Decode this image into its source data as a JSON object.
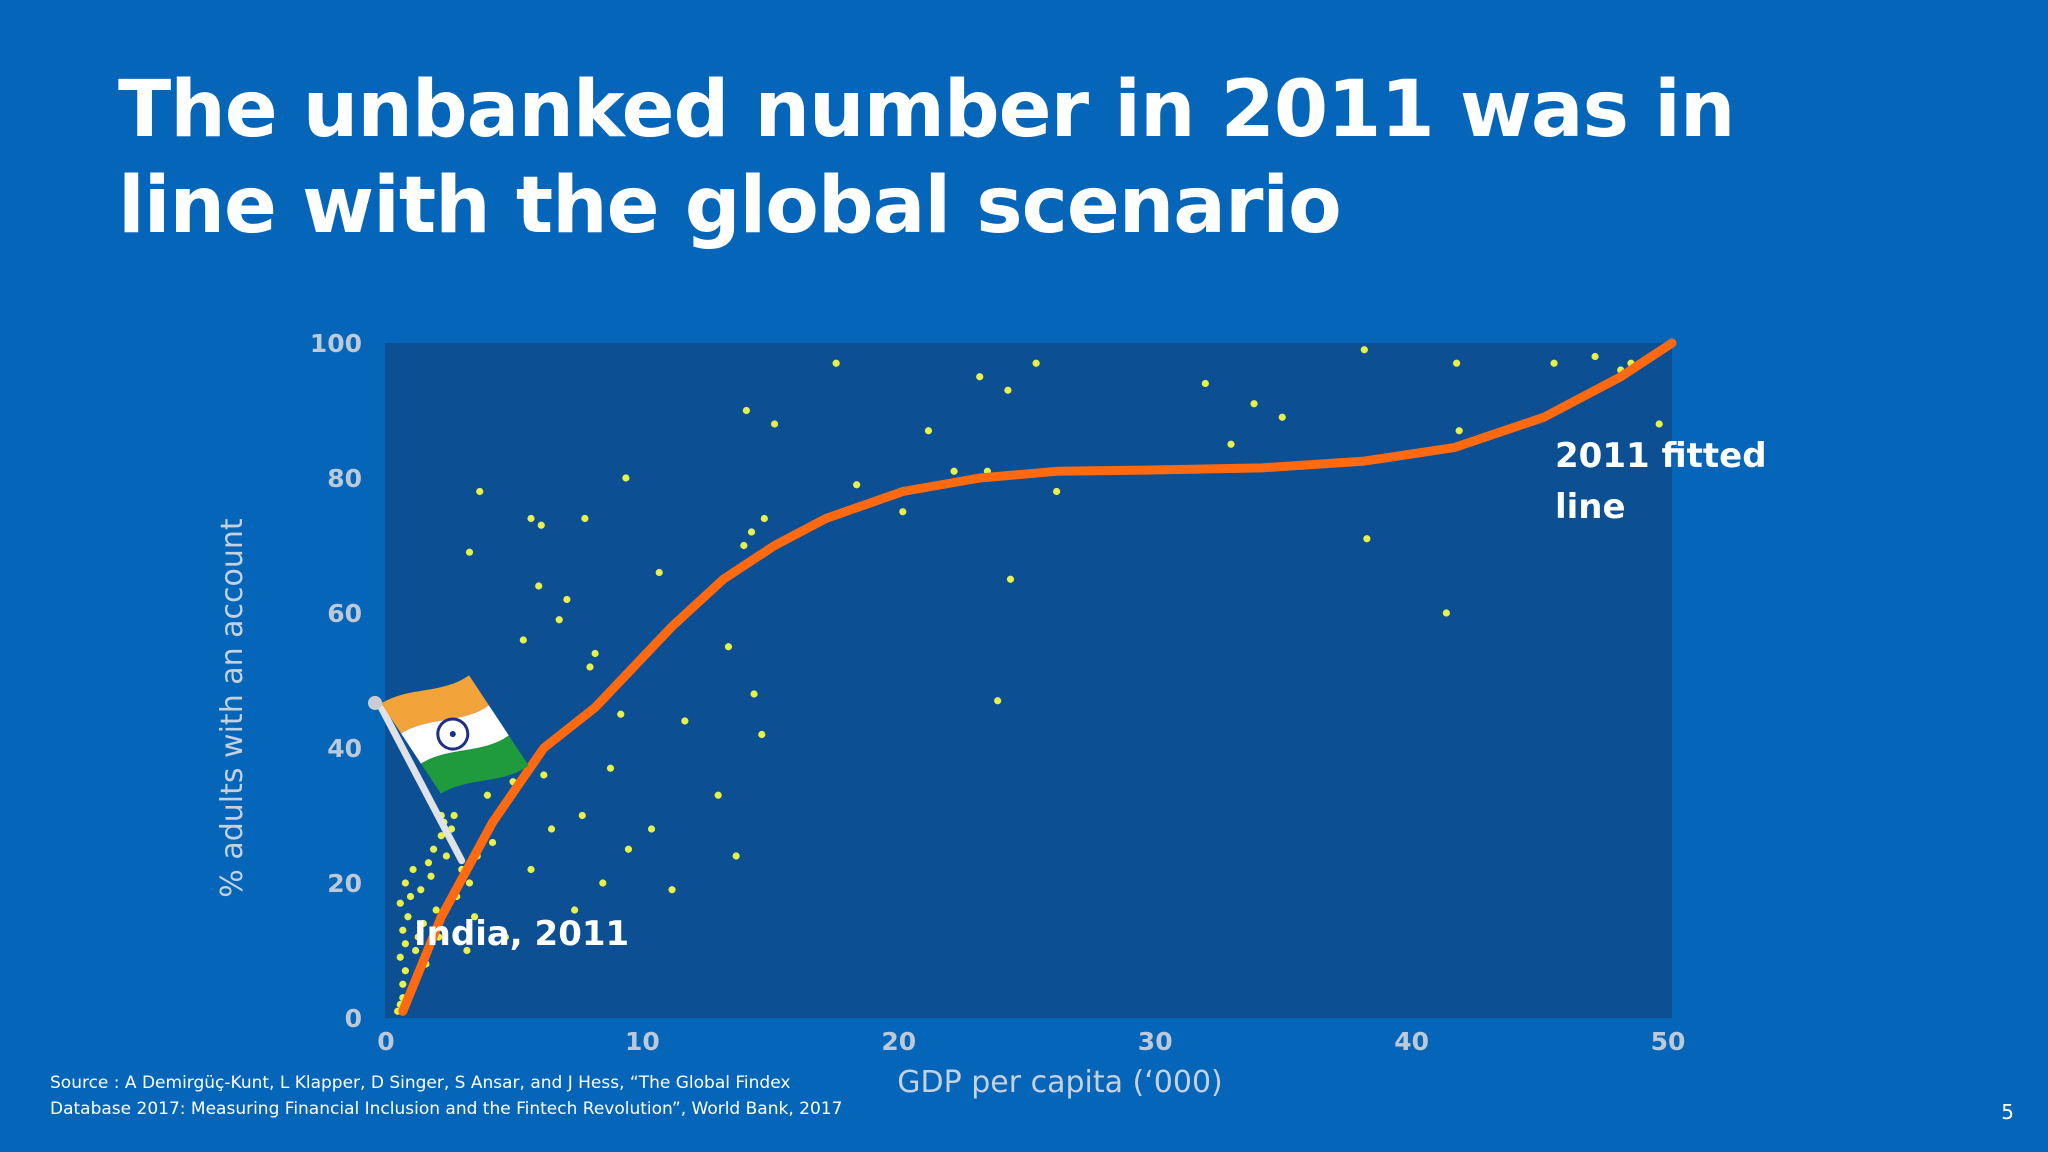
{
  "slide": {
    "title": "The unbanked number in 2011 was in line with the global scenario",
    "source": "Source : A Demirgüç-Kunt, L Klapper, D Singer, S Ansar, and J Hess, “The Global Findex Database 2017: Measuring Financial Inclusion and the Fintech Revolution”, World Bank, 2017",
    "page_number": "5"
  },
  "colors": {
    "background": "#0565b8",
    "plot_background": "#0d4f93",
    "points": "#e8f04a",
    "fitted_line": "#ff6a10"
  },
  "chart_data": {
    "type": "scatter",
    "xlabel": "GDP per capita (‘000)",
    "ylabel": "% adults with an account",
    "xlim": [
      0,
      50
    ],
    "ylim": [
      0,
      100
    ],
    "x_ticks": [
      "0",
      "10",
      "20",
      "30",
      "40",
      "50"
    ],
    "y_ticks": [
      "0",
      "20",
      "40",
      "60",
      "80",
      "100"
    ],
    "grid": false,
    "points": [
      [
        0.3,
        1
      ],
      [
        0.4,
        2
      ],
      [
        0.5,
        3
      ],
      [
        0.5,
        5
      ],
      [
        0.6,
        7
      ],
      [
        0.4,
        9
      ],
      [
        0.6,
        11
      ],
      [
        0.5,
        13
      ],
      [
        0.7,
        15
      ],
      [
        0.4,
        17
      ],
      [
        0.8,
        18
      ],
      [
        0.6,
        20
      ],
      [
        0.9,
        22
      ],
      [
        1.0,
        10
      ],
      [
        1.1,
        12
      ],
      [
        1.3,
        14
      ],
      [
        1.4,
        8
      ],
      [
        1.2,
        19
      ],
      [
        1.5,
        23
      ],
      [
        1.6,
        21
      ],
      [
        1.7,
        25
      ],
      [
        1.8,
        16
      ],
      [
        1.9,
        12
      ],
      [
        2.0,
        27
      ],
      [
        2.1,
        29
      ],
      [
        2.2,
        24
      ],
      [
        2.4,
        28
      ],
      [
        2.5,
        30
      ],
      [
        2.6,
        18
      ],
      [
        2.8,
        22
      ],
      [
        3.0,
        10
      ],
      [
        3.1,
        20
      ],
      [
        3.3,
        15
      ],
      [
        3.4,
        24
      ],
      [
        3.6,
        44
      ],
      [
        3.8,
        33
      ],
      [
        4.0,
        26
      ],
      [
        4.2,
        30
      ],
      [
        4.5,
        12
      ],
      [
        4.8,
        35
      ],
      [
        5.0,
        38
      ],
      [
        5.2,
        56
      ],
      [
        5.5,
        22
      ],
      [
        5.8,
        64
      ],
      [
        6.0,
        36
      ],
      [
        6.3,
        28
      ],
      [
        6.6,
        59
      ],
      [
        6.9,
        62
      ],
      [
        7.2,
        16
      ],
      [
        7.5,
        30
      ],
      [
        7.8,
        52
      ],
      [
        8.0,
        54
      ],
      [
        8.3,
        20
      ],
      [
        8.6,
        37
      ],
      [
        9.0,
        45
      ],
      [
        9.3,
        25
      ],
      [
        10.2,
        28
      ],
      [
        10.5,
        66
      ],
      [
        11.0,
        19
      ],
      [
        11.5,
        44
      ],
      [
        12.8,
        33
      ],
      [
        13.2,
        55
      ],
      [
        13.8,
        70
      ],
      [
        14.2,
        48
      ],
      [
        14.5,
        42
      ],
      [
        15.0,
        88
      ],
      [
        14.6,
        74
      ],
      [
        13.9,
        90
      ],
      [
        14.1,
        72
      ],
      [
        9.2,
        80
      ],
      [
        7.6,
        74
      ],
      [
        5.5,
        74
      ],
      [
        5.9,
        73
      ],
      [
        3.5,
        78
      ],
      [
        3.1,
        69
      ],
      [
        2.0,
        30
      ],
      [
        13.5,
        24
      ],
      [
        17.4,
        97
      ],
      [
        18.2,
        79
      ],
      [
        21.0,
        87
      ],
      [
        22.0,
        81
      ],
      [
        23.3,
        81
      ],
      [
        23.0,
        95
      ],
      [
        24.1,
        93
      ],
      [
        24.2,
        65
      ],
      [
        23.7,
        47
      ],
      [
        25.2,
        97
      ],
      [
        26.0,
        78
      ],
      [
        20.0,
        75
      ],
      [
        31.8,
        94
      ],
      [
        32.8,
        85
      ],
      [
        33.7,
        91
      ],
      [
        34.8,
        89
      ],
      [
        38.0,
        99
      ],
      [
        38.1,
        71
      ],
      [
        41.2,
        60
      ],
      [
        41.6,
        97
      ],
      [
        41.7,
        87
      ],
      [
        45.4,
        97
      ],
      [
        47.0,
        98
      ],
      [
        48.0,
        96
      ],
      [
        48.4,
        97
      ],
      [
        49.5,
        88
      ]
    ],
    "series": [
      {
        "name": "2011 fitted line",
        "x": [
          0.5,
          2,
          4,
          6,
          8,
          11,
          13,
          15,
          17,
          20,
          23,
          26,
          30,
          34,
          38,
          41.5,
          45,
          48,
          50
        ],
        "y": [
          1,
          15,
          29,
          40,
          46,
          58,
          65,
          70,
          74,
          78,
          80,
          81,
          81.2,
          81.5,
          82.5,
          84.5,
          89,
          95,
          100
        ]
      }
    ],
    "annotations": [
      {
        "text": "India, 2011",
        "x": 1.2,
        "y": 13
      },
      {
        "text": "2011 fitted line",
        "x": 45.5,
        "y": 83
      }
    ]
  }
}
